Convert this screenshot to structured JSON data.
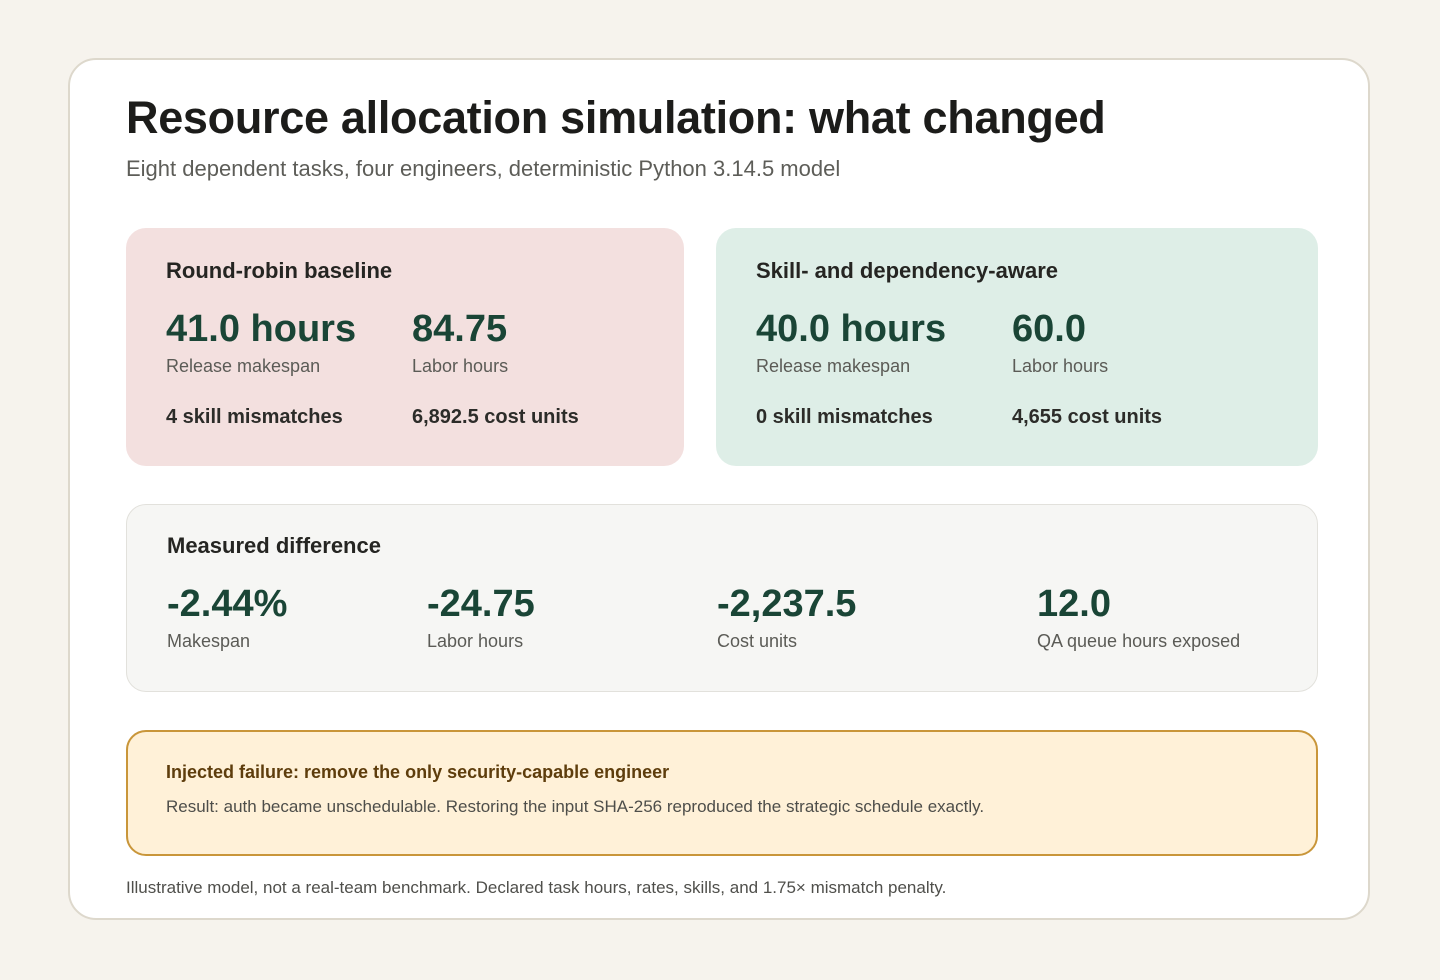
{
  "header": {
    "title": "Resource allocation simulation: what changed",
    "subtitle": "Eight dependent tasks, four engineers, deterministic Python 3.14.5 model"
  },
  "baseline": {
    "title": "Round-robin baseline",
    "makespan_value": "41.0 hours",
    "makespan_label": "Release makespan",
    "labor_value": "84.75",
    "labor_label": "Labor hours",
    "mismatches": "4 skill mismatches",
    "cost": "6,892.5 cost units"
  },
  "strategic": {
    "title": "Skill- and dependency-aware",
    "makespan_value": "40.0 hours",
    "makespan_label": "Release makespan",
    "labor_value": "60.0",
    "labor_label": "Labor hours",
    "mismatches": "0 skill mismatches",
    "cost": "4,655 cost units"
  },
  "difference": {
    "title": "Measured difference",
    "metrics": [
      {
        "value": "-2.44%",
        "label": "Makespan"
      },
      {
        "value": "-24.75",
        "label": "Labor hours"
      },
      {
        "value": "-2,237.5",
        "label": "Cost units"
      },
      {
        "value": "12.0",
        "label": "QA queue hours exposed"
      }
    ]
  },
  "failure": {
    "title": "Injected failure: remove the only security-capable engineer",
    "body": "Result: auth became unschedulable. Restoring the input SHA-256 reproduced the strategic schedule exactly."
  },
  "footnote": "Illustrative model, not a real-team benchmark. Declared task hours, rates, skills, and 1.75× mismatch penalty.",
  "colors": {
    "page_background": "#f6f3ed",
    "baseline_panel": "#f3e0df",
    "strategic_panel": "#deeee7",
    "difference_panel": "#f6f6f4",
    "failure_panel": "#fff1d8",
    "failure_border": "#c9963a",
    "metric_accent": "#1a4536"
  }
}
